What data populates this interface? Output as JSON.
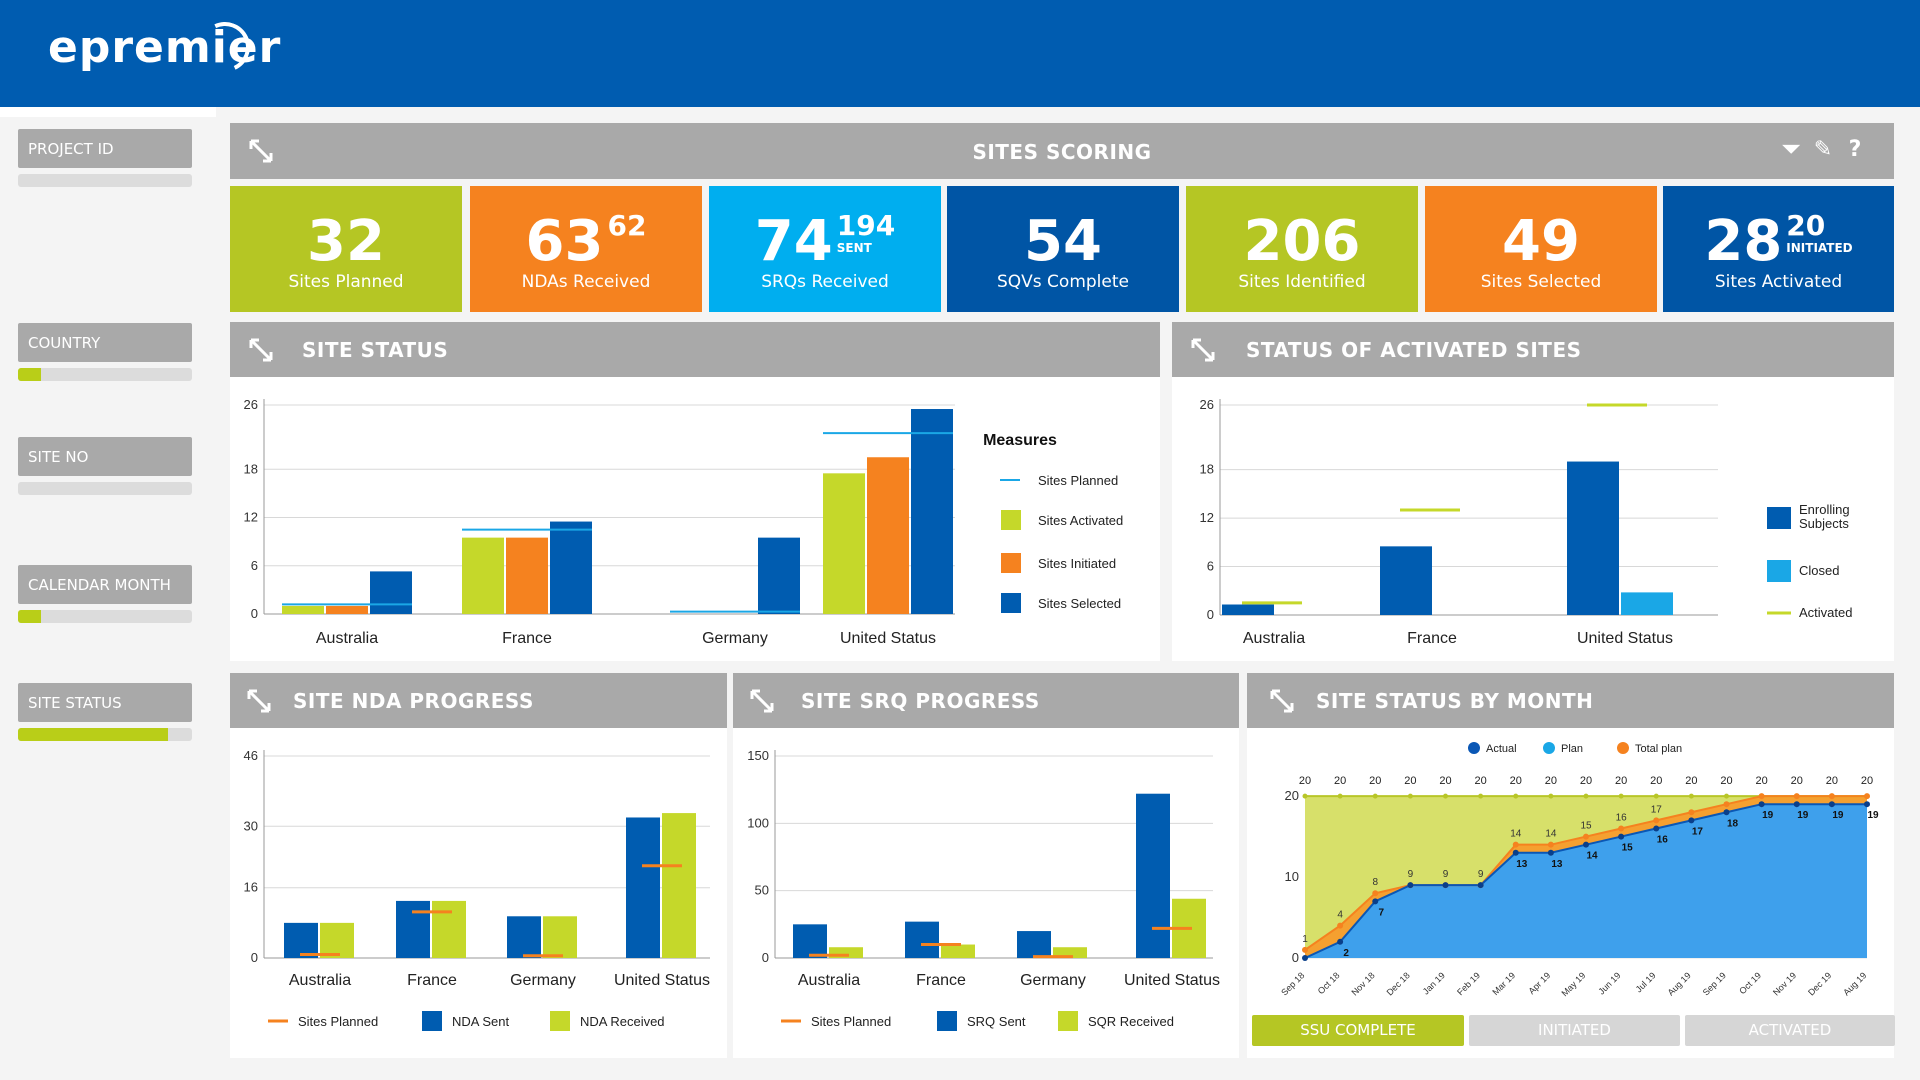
{
  "app": {
    "logo_text": "epremier"
  },
  "sidebar": {
    "filters": [
      {
        "label": "PROJECT ID",
        "fill": 0.0
      },
      {
        "label": "COUNTRY",
        "fill": 0.13
      },
      {
        "label": "SITE NO",
        "fill": 0.0
      },
      {
        "label": "CALENDAR MONTH",
        "fill": 0.13
      },
      {
        "label": "SITE STATUS",
        "fill": 0.86
      }
    ]
  },
  "scoring": {
    "title": "SITES SCORING",
    "tools": [
      "filter-icon",
      "pencil-icon",
      "help-icon"
    ],
    "kpis": [
      {
        "value": "32",
        "sup": "",
        "sup_label": "",
        "label": "Sites Planned",
        "color": "#b5c624"
      },
      {
        "value": "63",
        "sup": "62",
        "sup_label": "",
        "label": "NDAs Received",
        "color": "#f5821f"
      },
      {
        "value": "74",
        "sup": "194",
        "sup_label": "SENT",
        "label": "SRQs Received",
        "color": "#00aeef"
      },
      {
        "value": "54",
        "sup": "",
        "sup_label": "",
        "label": "SQVs Complete",
        "color": "#0055a5"
      },
      {
        "value": "206",
        "sup": "",
        "sup_label": "",
        "label": "Sites Identified",
        "color": "#b5c624"
      },
      {
        "value": "49",
        "sup": "",
        "sup_label": "",
        "label": "Sites Selected",
        "color": "#f5821f"
      },
      {
        "value": "28",
        "sup": "20",
        "sup_label": "INITIATED",
        "label": "Sites Activated",
        "color": "#0055a5"
      }
    ]
  },
  "colors": {
    "blue": "#005cb0",
    "lime": "#c5d82a",
    "orange": "#f5821f",
    "cyan": "#1aa7e6",
    "planned": "#1aa7e6"
  },
  "panels": {
    "site_status": "SITE STATUS",
    "activated_sites": "STATUS OF ACTIVATED SITES",
    "nda_progress": "SITE NDA PROGRESS",
    "srq_progress": "SITE SRQ PROGRESS",
    "status_by_month": "SITE STATUS BY MONTH"
  },
  "tabs": [
    "SSU COMPLETE",
    "INITIATED",
    "ACTIVATED"
  ],
  "chart_data": [
    {
      "id": "site_status",
      "type": "bar",
      "categories": [
        "Australia",
        "France",
        "Germany",
        "United Status"
      ],
      "yticks": [
        0,
        6,
        12,
        18,
        26
      ],
      "ylim": [
        0,
        26
      ],
      "legend_title": "Measures",
      "series": [
        {
          "name": "Sites Activated",
          "values": [
            1,
            9.5,
            0,
            17.5
          ]
        },
        {
          "name": "Sites Initiated",
          "values": [
            1,
            9.5,
            0,
            19.5
          ]
        },
        {
          "name": "Sites Selected",
          "values": [
            5.3,
            11.5,
            9.5,
            25.5
          ]
        }
      ],
      "planned": {
        "name": "Sites Planned",
        "values": [
          1.2,
          10.5,
          0.3,
          22.5
        ]
      }
    },
    {
      "id": "activated_sites",
      "type": "bar",
      "categories": [
        "Australia",
        "France",
        "United Status"
      ],
      "yticks": [
        0,
        6,
        12,
        18,
        26
      ],
      "ylim": [
        0,
        26
      ],
      "series": [
        {
          "name": "Enrolling Subjects",
          "values": [
            1.3,
            8.5,
            19
          ]
        },
        {
          "name": "Closed",
          "values": [
            0,
            0,
            2.8
          ]
        }
      ],
      "activated": {
        "name": "Activated",
        "values": [
          1.5,
          13,
          26
        ]
      }
    },
    {
      "id": "nda_progress",
      "type": "bar",
      "categories": [
        "Australia",
        "France",
        "Germany",
        "United Status"
      ],
      "yticks": [
        0,
        16,
        30,
        46
      ],
      "ylim": [
        0,
        46
      ],
      "series": [
        {
          "name": "NDA Sent",
          "values": [
            8,
            13,
            9.5,
            32
          ]
        },
        {
          "name": "NDA Received",
          "values": [
            8,
            13,
            9.5,
            33
          ]
        }
      ],
      "planned": {
        "name": "Sites Planned",
        "values": [
          0.8,
          10.5,
          0.5,
          21
        ]
      }
    },
    {
      "id": "srq_progress",
      "type": "bar",
      "categories": [
        "Australia",
        "France",
        "Germany",
        "United Status"
      ],
      "yticks": [
        0,
        50,
        100,
        150
      ],
      "ylim": [
        0,
        150
      ],
      "series": [
        {
          "name": "SRQ Sent",
          "values": [
            25,
            27,
            20,
            122
          ]
        },
        {
          "name": "SQR Received",
          "values": [
            8,
            10,
            8,
            44
          ]
        }
      ],
      "planned": {
        "name": "Sites Planned",
        "values": [
          2,
          10,
          1,
          22
        ]
      }
    },
    {
      "id": "status_by_month",
      "type": "area",
      "x": [
        "Sep 18",
        "Oct 18",
        "Nov 18",
        "Dec 18",
        "Jan 19",
        "Feb 19",
        "Mar 19",
        "Apr 19",
        "May 19",
        "Jun 19",
        "Jul 19",
        "Aug 19",
        "Sep 19",
        "Oct 19",
        "Nov 19",
        "Dec 19",
        "Aug 19"
      ],
      "yticks": [
        0,
        10,
        20
      ],
      "ylim": [
        0,
        21
      ],
      "legend": [
        "Actual",
        "Plan",
        "Total plan"
      ],
      "total_plan": [
        20,
        20,
        20,
        20,
        20,
        20,
        20,
        20,
        20,
        20,
        20,
        20,
        20,
        20,
        20,
        20,
        20
      ],
      "plan": [
        1,
        4,
        8,
        9,
        9,
        9,
        14,
        14,
        15,
        16,
        17,
        18,
        19,
        20,
        20,
        20,
        20
      ],
      "actual": [
        0,
        2,
        7,
        9,
        9,
        9,
        13,
        13,
        14,
        15,
        16,
        17,
        18,
        19,
        19,
        19,
        19
      ],
      "plan_labels": [
        "1",
        "4",
        "8",
        "9",
        "9",
        "9",
        "14",
        "14",
        "15",
        "16",
        "17",
        "",
        "",
        "",
        "",
        "",
        ""
      ],
      "actual_labels": [
        "",
        "2",
        "7",
        "",
        "",
        "",
        "13",
        "13",
        "14",
        "15",
        "16",
        "17",
        "18",
        "19",
        "19",
        "19",
        "19"
      ]
    }
  ]
}
